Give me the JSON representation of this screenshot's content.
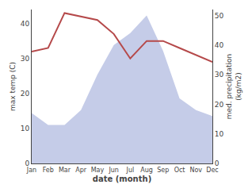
{
  "chart_data": {
    "type": "line",
    "categories": [
      "Jan",
      "Feb",
      "Mar",
      "Apr",
      "May",
      "Jun",
      "Jul",
      "Aug",
      "Sep",
      "Oct",
      "Nov",
      "Dec"
    ],
    "series": [
      {
        "name": "max temp (C)",
        "type": "line",
        "color": "#b5494a",
        "values": [
          32,
          33,
          43,
          42,
          41,
          37,
          30,
          35,
          35,
          33,
          31,
          29
        ]
      },
      {
        "name": "med. precipitation\n(kg/m2)",
        "type": "area",
        "axis": "y2",
        "color": "#c5cce8",
        "values": [
          17,
          13,
          13,
          18,
          30,
          40,
          44,
          50,
          38,
          22,
          18,
          16
        ]
      }
    ],
    "xlabel": "date (month)",
    "ylabel": "max temp (C)",
    "y2label": "med. precipitation\n(kg/m2)",
    "ylim": [
      0,
      44
    ],
    "yticks": [
      0,
      10,
      20,
      30,
      40
    ],
    "y2lim": [
      0,
      52
    ],
    "y2ticks": [
      0,
      10,
      20,
      30,
      40,
      50
    ],
    "grid": false
  }
}
